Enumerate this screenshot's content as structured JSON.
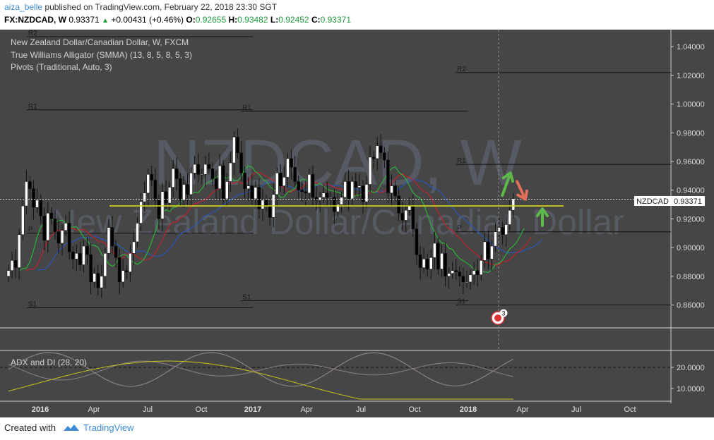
{
  "header": {
    "user": "aiza_belle",
    "published_text": "published on TradingView.com, February 22, 2018 23:30 SGT",
    "symbol_tf": "FX:NZDCAD, W",
    "price": "0.93371",
    "change": "+0.00431 (+0.46%)",
    "o_label": "O:",
    "o_value": "0.92655",
    "h_label": "H:",
    "h_value": "0.93482",
    "l_label": "L:",
    "l_value": "0.92452",
    "c_label": "C:",
    "c_value": "0.93371"
  },
  "legend": {
    "title": "New Zealand Dollar/Canadian Dollar, W, FXCM",
    "indicator1": "True Williams Alligator (SMMA) (13, 8, 5, 8, 5, 3)",
    "indicator2": "Pivots (Traditional, Auto, 3)",
    "adx": "ADX and DI (28, 20)"
  },
  "watermark": {
    "line1": "NZDCAD, W",
    "line2": "New Zealand Dollar/Canadian Dollar"
  },
  "colors": {
    "background": "#464646",
    "candle_up": "#ffffff",
    "candle_down": "#000000",
    "jaw": "#2a56b8",
    "teeth": "#c0222c",
    "lips": "#2eb13a",
    "support_line": "#d8d81c",
    "arrow_up": "#5fb84a",
    "arrow_down": "#e0705a",
    "adx": "#c9c21a",
    "di_plus": "#9a8b8b",
    "di_minus": "#8c7f8c"
  },
  "price_label": {
    "symbol": "NZDCAD",
    "value": "0.93371"
  },
  "event_badge": {
    "count": "3"
  },
  "chart_data": {
    "type": "candlestick",
    "title": "New Zealand Dollar/Canadian Dollar, W, FXCM",
    "y_axis_ticks": [
      "1.04000",
      "1.02000",
      "1.00000",
      "0.98000",
      "0.96000",
      "0.94000",
      "0.92000",
      "0.90000",
      "0.88000",
      "0.86000"
    ],
    "y_range": [
      0.844,
      1.047
    ],
    "x_axis_ticks": [
      "2016",
      "Apr",
      "Jul",
      "Oct",
      "2017",
      "Apr",
      "Jul",
      "Oct",
      "2018",
      "Apr",
      "Jul",
      "Oct"
    ],
    "last_close": 0.93371,
    "closes": [
      0.884,
      0.891,
      0.886,
      0.909,
      0.929,
      0.946,
      0.941,
      0.928,
      0.933,
      0.922,
      0.905,
      0.924,
      0.92,
      0.911,
      0.903,
      0.912,
      0.917,
      0.897,
      0.892,
      0.896,
      0.888,
      0.901,
      0.895,
      0.876,
      0.882,
      0.872,
      0.88,
      0.896,
      0.914,
      0.901,
      0.893,
      0.876,
      0.884,
      0.883,
      0.896,
      0.904,
      0.917,
      0.932,
      0.938,
      0.951,
      0.947,
      0.933,
      0.92,
      0.939,
      0.931,
      0.942,
      0.955,
      0.948,
      0.933,
      0.944,
      0.937,
      0.952,
      0.958,
      0.951,
      0.951,
      0.958,
      0.955,
      0.948,
      0.941,
      0.957,
      0.934,
      0.946,
      0.959,
      0.977,
      0.966,
      0.952,
      0.941,
      0.943,
      0.934,
      0.942,
      0.927,
      0.933,
      0.929,
      0.921,
      0.937,
      0.952,
      0.943,
      0.949,
      0.962,
      0.956,
      0.946,
      0.94,
      0.939,
      0.938,
      0.951,
      0.935,
      0.933,
      0.935,
      0.938,
      0.935,
      0.935,
      0.925,
      0.93,
      0.935,
      0.946,
      0.934,
      0.946,
      0.942,
      0.943,
      0.932,
      0.944,
      0.963,
      0.962,
      0.971,
      0.966,
      0.961,
      0.938,
      0.943,
      0.936,
      0.924,
      0.919,
      0.926,
      0.929,
      0.913,
      0.895,
      0.886,
      0.892,
      0.885,
      0.893,
      0.903,
      0.885,
      0.896,
      0.88,
      0.882,
      0.884,
      0.883,
      0.88,
      0.876,
      0.876,
      0.881,
      0.884,
      0.881,
      0.891,
      0.904,
      0.892,
      0.901,
      0.911,
      0.914,
      0.909,
      0.916,
      0.926,
      0.934
    ],
    "pivots": [
      {
        "label": "R2",
        "value": 1.022
      },
      {
        "label": "R1",
        "value": 0.958
      },
      {
        "label": "P",
        "value": 0.911
      },
      {
        "label": "S1",
        "value": 0.86
      }
    ],
    "pivots_2016": [
      {
        "label": "R2",
        "value": 1.047
      },
      {
        "label": "R1",
        "value": 0.996
      },
      {
        "label": "P",
        "value": 0.91
      },
      {
        "label": "S1",
        "value": 0.858
      }
    ],
    "pivots_2017": [
      {
        "label": "R1",
        "value": 0.995
      },
      {
        "label": "S1",
        "value": 0.863
      }
    ],
    "pivot_labels": [
      "R2",
      "R1",
      "P",
      "S1",
      "S1",
      "R1",
      "S1",
      "R2",
      "R1",
      "P",
      "S1"
    ],
    "support_level": 0.929,
    "adx_panel": {
      "title": "ADX and DI (28, 20)",
      "ticks": [
        "20.0000",
        "10.0000"
      ],
      "threshold": 20
    }
  },
  "footer": {
    "created_with": "Created with",
    "brand": "TradingView"
  }
}
